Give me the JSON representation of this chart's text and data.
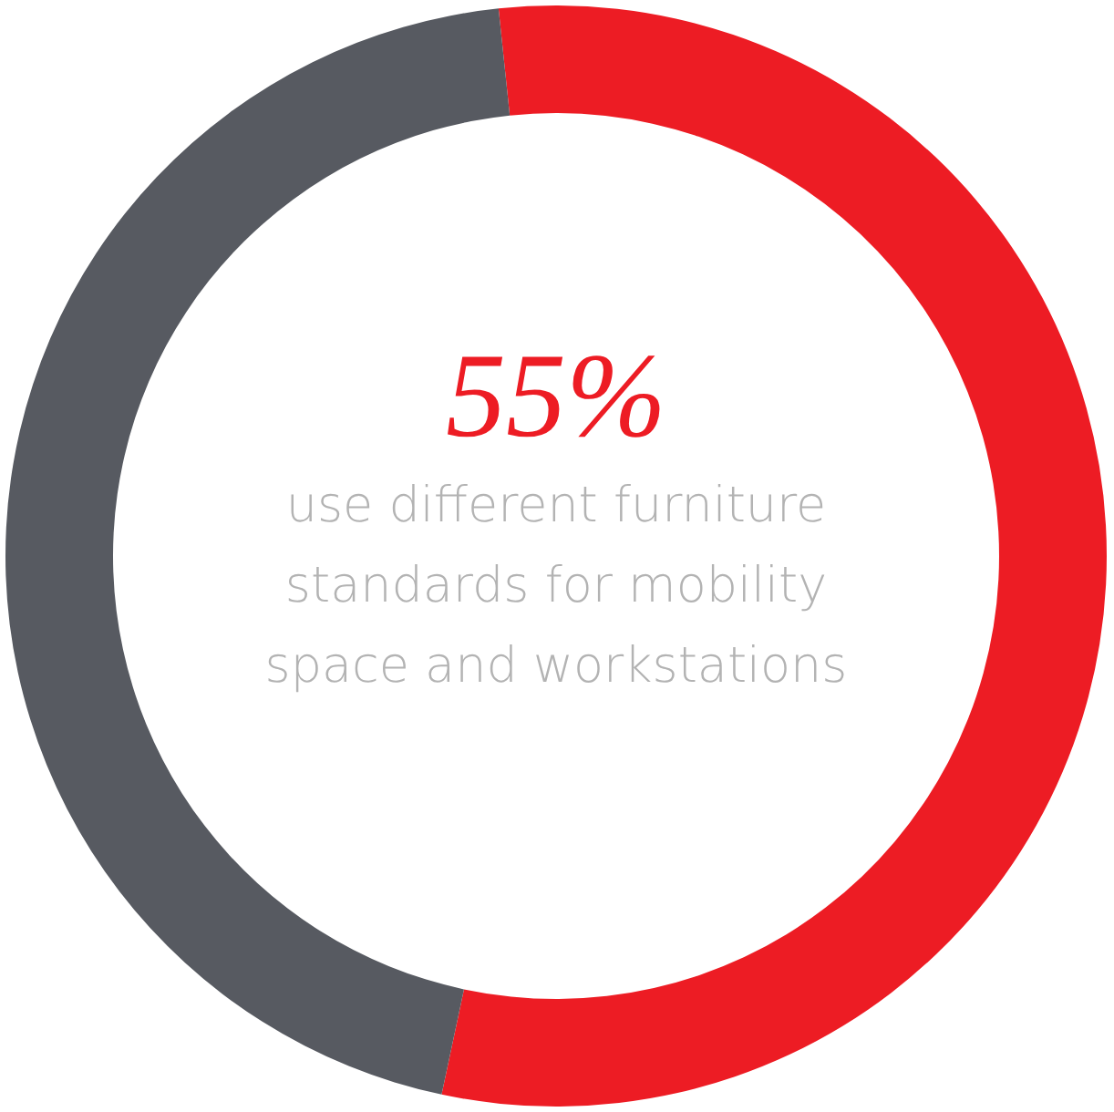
{
  "chart_data": {
    "type": "donut",
    "categories": [
      null,
      null
    ],
    "values": [
      55,
      45
    ],
    "colors": [
      "#ed1c24",
      "#575a61"
    ],
    "value_labels": [
      "55%",
      null
    ],
    "annotations": [
      "use different furniture standards for mobility space and workstations"
    ]
  }
}
